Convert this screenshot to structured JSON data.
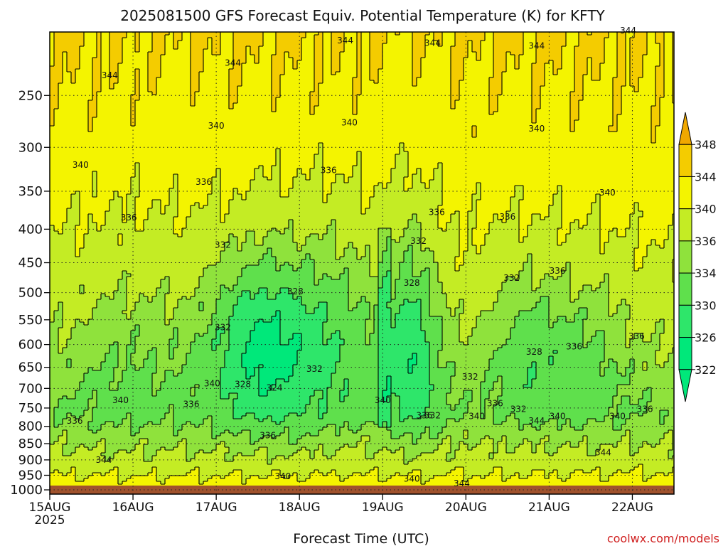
{
  "chart_data": {
    "type": "heatmap",
    "title": "2025081500 GFS Forecast Equiv. Potential Temperature (K) for KFTY",
    "xlabel": "Forecast Time (UTC)",
    "ylabel": "",
    "credit": "coolwx.com/models",
    "x_ticks": [
      {
        "label": "15AUG",
        "sublabel": "2025",
        "day": 0
      },
      {
        "label": "16AUG",
        "sublabel": "",
        "day": 1
      },
      {
        "label": "17AUG",
        "sublabel": "",
        "day": 2
      },
      {
        "label": "18AUG",
        "sublabel": "",
        "day": 3
      },
      {
        "label": "19AUG",
        "sublabel": "",
        "day": 4
      },
      {
        "label": "20AUG",
        "sublabel": "",
        "day": 5
      },
      {
        "label": "21AUG",
        "sublabel": "",
        "day": 6
      },
      {
        "label": "22AUG",
        "sublabel": "",
        "day": 7
      }
    ],
    "xlim_days": [
      0,
      7.5
    ],
    "y_ticks": [
      250,
      300,
      350,
      400,
      450,
      500,
      550,
      600,
      650,
      700,
      750,
      800,
      850,
      900,
      950,
      1000
    ],
    "ylim": [
      200,
      1015
    ],
    "y_scale": "log (pressure, hPa)",
    "ground_level_hPa": 985,
    "grid": true,
    "colorbar": {
      "levels": [
        322,
        326,
        330,
        334,
        336,
        340,
        344,
        348
      ],
      "labels": [
        "322",
        "326",
        "330",
        "334",
        "336",
        "340",
        "344",
        "348"
      ],
      "colors": [
        "#00e87a",
        "#2ee66a",
        "#5fe04c",
        "#8fe23c",
        "#c4ec24",
        "#f4f400",
        "#f4cc00",
        "#f0a800"
      ],
      "ground_color": "#a0522d"
    },
    "contour_labels": [
      {
        "text": "344",
        "day": 0.72,
        "p": 233
      },
      {
        "text": "344",
        "day": 2.2,
        "p": 223
      },
      {
        "text": "344",
        "day": 3.55,
        "p": 206
      },
      {
        "text": "344",
        "day": 4.6,
        "p": 208
      },
      {
        "text": "344",
        "day": 5.85,
        "p": 210
      },
      {
        "text": "344",
        "day": 6.95,
        "p": 199
      },
      {
        "text": "340",
        "day": 0.37,
        "p": 319
      },
      {
        "text": "340",
        "day": 2.0,
        "p": 278
      },
      {
        "text": "340",
        "day": 3.6,
        "p": 275
      },
      {
        "text": "340",
        "day": 5.85,
        "p": 281
      },
      {
        "text": "340",
        "day": 6.7,
        "p": 352
      },
      {
        "text": "336",
        "day": 0.95,
        "p": 384
      },
      {
        "text": "336",
        "day": 1.85,
        "p": 339
      },
      {
        "text": "336",
        "day": 3.35,
        "p": 325
      },
      {
        "text": "336",
        "day": 4.65,
        "p": 377
      },
      {
        "text": "336",
        "day": 5.5,
        "p": 383
      },
      {
        "text": "336",
        "day": 6.1,
        "p": 463
      },
      {
        "text": "332",
        "day": 2.08,
        "p": 423
      },
      {
        "text": "332",
        "day": 4.43,
        "p": 417
      },
      {
        "text": "332",
        "day": 5.55,
        "p": 475
      },
      {
        "text": "328",
        "day": 2.95,
        "p": 498
      },
      {
        "text": "328",
        "day": 4.35,
        "p": 483
      },
      {
        "text": "328",
        "day": 5.82,
        "p": 616
      },
      {
        "text": "336",
        "day": 6.3,
        "p": 604
      },
      {
        "text": "336",
        "day": 7.05,
        "p": 583
      },
      {
        "text": "332",
        "day": 2.08,
        "p": 565
      },
      {
        "text": "332",
        "day": 3.18,
        "p": 654
      },
      {
        "text": "332",
        "day": 5.05,
        "p": 672
      },
      {
        "text": "328",
        "day": 2.32,
        "p": 690
      },
      {
        "text": "324",
        "day": 2.7,
        "p": 699
      },
      {
        "text": "340",
        "day": 1.95,
        "p": 688
      },
      {
        "text": "340",
        "day": 0.85,
        "p": 730
      },
      {
        "text": "336",
        "day": 1.7,
        "p": 740
      },
      {
        "text": "336",
        "day": 0.3,
        "p": 785
      },
      {
        "text": "340",
        "day": 4.0,
        "p": 730
      },
      {
        "text": "336",
        "day": 4.5,
        "p": 770
      },
      {
        "text": "332",
        "day": 4.6,
        "p": 770
      },
      {
        "text": "340",
        "day": 5.13,
        "p": 772
      },
      {
        "text": "336",
        "day": 5.35,
        "p": 738
      },
      {
        "text": "332",
        "day": 5.63,
        "p": 753
      },
      {
        "text": "344",
        "day": 5.85,
        "p": 785
      },
      {
        "text": "340",
        "day": 6.1,
        "p": 772
      },
      {
        "text": "340",
        "day": 6.82,
        "p": 772
      },
      {
        "text": "336",
        "day": 7.15,
        "p": 753
      },
      {
        "text": "336",
        "day": 2.62,
        "p": 826
      },
      {
        "text": "344",
        "day": 0.65,
        "p": 900
      },
      {
        "text": "340",
        "day": 2.8,
        "p": 953
      },
      {
        "text": "340",
        "day": 4.35,
        "p": 962
      },
      {
        "text": "344",
        "day": 4.95,
        "p": 978
      },
      {
        "text": "344",
        "day": 6.65,
        "p": 877
      }
    ]
  }
}
